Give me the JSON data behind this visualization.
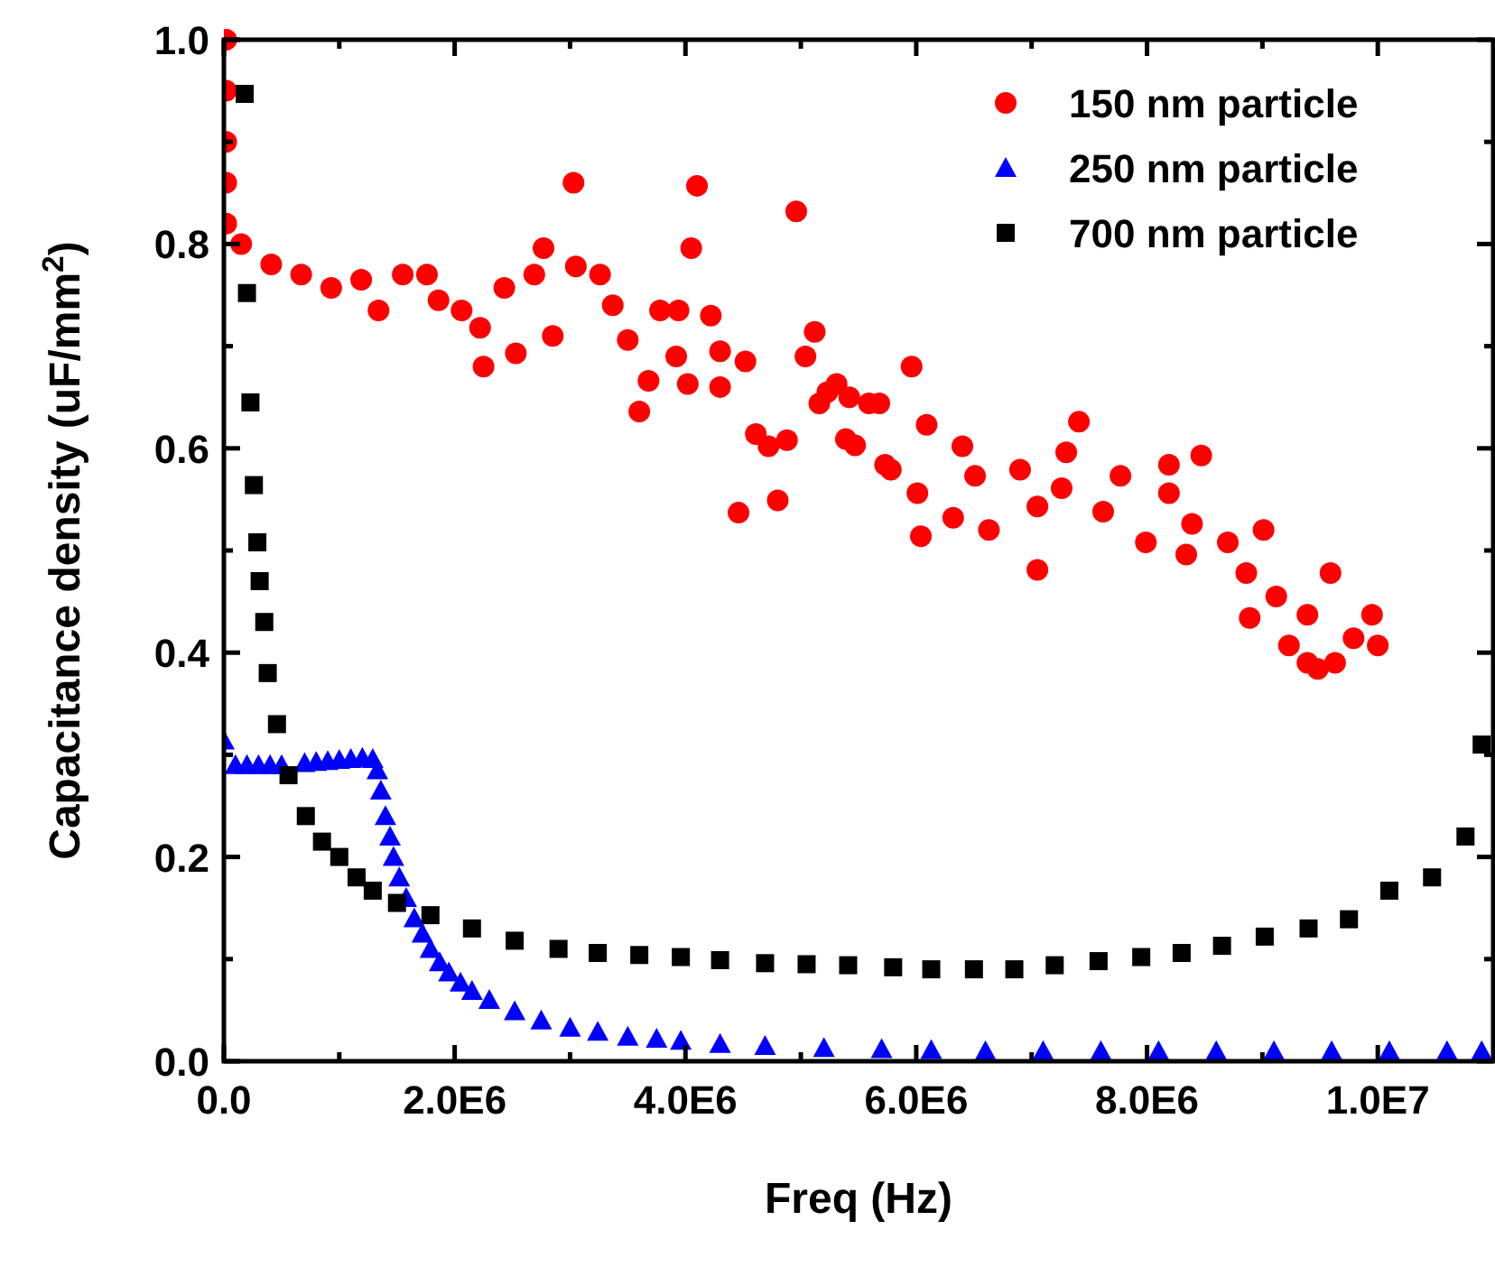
{
  "chart_data": {
    "type": "scatter",
    "xlabel": "Freq (Hz)",
    "ylabel": "Capacitance density (uF/mm$^{2}$)",
    "xlim": [
      0,
      11000000
    ],
    "ylim": [
      0,
      1.0
    ],
    "xticks": [
      {
        "value": 0,
        "label": "0.0"
      },
      {
        "value": 1000000,
        "label": null
      },
      {
        "value": 2000000,
        "label": "2.0E6"
      },
      {
        "value": 3000000,
        "label": null
      },
      {
        "value": 4000000,
        "label": "4.0E6"
      },
      {
        "value": 5000000,
        "label": null
      },
      {
        "value": 6000000,
        "label": "6.0E6"
      },
      {
        "value": 7000000,
        "label": null
      },
      {
        "value": 8000000,
        "label": "8.0E6"
      },
      {
        "value": 9000000,
        "label": null
      },
      {
        "value": 10000000,
        "label": "1.0E7"
      }
    ],
    "yticks": [
      {
        "value": 0,
        "label": "0.0"
      },
      {
        "value": 0.1,
        "label": null
      },
      {
        "value": 0.2,
        "label": "0.2"
      },
      {
        "value": 0.3,
        "label": null
      },
      {
        "value": 0.4,
        "label": "0.4"
      },
      {
        "value": 0.5,
        "label": null
      },
      {
        "value": 0.6,
        "label": "0.6"
      },
      {
        "value": 0.7,
        "label": null
      },
      {
        "value": 0.8,
        "label": "0.8"
      },
      {
        "value": 0.9,
        "label": null
      },
      {
        "value": 1.0,
        "label": "1.0"
      }
    ],
    "legend": "top right",
    "grid": false,
    "series": [
      {
        "name": "150 nm particle",
        "color": "#ff0000",
        "marker": "circle",
        "x": [
          20000,
          20000,
          20000,
          20000,
          20000,
          150000,
          410000,
          670000,
          930000,
          1190000,
          1340000,
          1550000,
          1760000,
          1860000,
          2060000,
          2220000,
          2250000,
          2430000,
          2530000,
          2690000,
          2770000,
          2850000,
          3030000,
          3050000,
          3260000,
          3370000,
          3500000,
          3600000,
          3680000,
          3780000,
          3940000,
          3920000,
          4020000,
          4050000,
          4100000,
          4220000,
          4300000,
          4300000,
          4460000,
          4520000,
          4610000,
          4720000,
          4800000,
          4880000,
          4960000,
          5040000,
          5120000,
          5160000,
          5310000,
          5420000,
          5470000,
          5680000,
          5780000,
          5960000,
          5230000,
          5590000,
          5390000,
          5730000,
          6090000,
          6010000,
          6040000,
          6400000,
          6320000,
          6510000,
          6630000,
          6900000,
          7050000,
          7050000,
          7300000,
          7410000,
          7260000,
          7620000,
          7770000,
          7990000,
          8190000,
          8190000,
          8390000,
          8470000,
          8340000,
          8700000,
          9010000,
          8860000,
          9120000,
          8890000,
          9590000,
          9390000,
          9230000,
          9480000,
          9630000,
          9950000,
          10000000,
          9790000,
          9390000
        ],
        "values": [
          1.0,
          0.95,
          0.9,
          0.86,
          0.82,
          0.8,
          0.78,
          0.77,
          0.757,
          0.765,
          0.735,
          0.77,
          0.77,
          0.745,
          0.735,
          0.718,
          0.68,
          0.757,
          0.693,
          0.77,
          0.796,
          0.71,
          0.86,
          0.778,
          0.77,
          0.74,
          0.706,
          0.636,
          0.666,
          0.735,
          0.735,
          0.69,
          0.663,
          0.796,
          0.857,
          0.73,
          0.695,
          0.66,
          0.537,
          0.685,
          0.614,
          0.602,
          0.549,
          0.608,
          0.832,
          0.69,
          0.714,
          0.644,
          0.663,
          0.65,
          0.603,
          0.644,
          0.579,
          0.68,
          0.655,
          0.644,
          0.609,
          0.584,
          0.623,
          0.556,
          0.514,
          0.602,
          0.532,
          0.573,
          0.52,
          0.579,
          0.543,
          0.481,
          0.596,
          0.626,
          0.561,
          0.538,
          0.573,
          0.508,
          0.584,
          0.556,
          0.526,
          0.593,
          0.496,
          0.508,
          0.52,
          0.478,
          0.455,
          0.434,
          0.478,
          0.437,
          0.407,
          0.384,
          0.39,
          0.437,
          0.407,
          0.414,
          0.39
        ]
      },
      {
        "name": "250 nm particle",
        "color": "#0000ff",
        "marker": "triangle",
        "x": [
          0,
          100000,
          200000,
          300000,
          400000,
          500000,
          700000,
          800000,
          900000,
          1000000,
          1100000,
          1200000,
          1290000,
          1330000,
          1360000,
          1400000,
          1440000,
          1470000,
          1520000,
          1580000,
          1650000,
          1720000,
          1790000,
          1870000,
          1950000,
          2050000,
          2150000,
          2300000,
          2520000,
          2750000,
          3000000,
          3240000,
          3500000,
          3750000,
          3960000,
          4300000,
          4690000,
          5200000,
          5700000,
          6130000,
          6600000,
          7100000,
          7600000,
          8100000,
          8600000,
          9100000,
          9600000,
          10100000,
          10600000,
          10900000
        ],
        "values": [
          0.314,
          0.29,
          0.29,
          0.29,
          0.29,
          0.29,
          0.292,
          0.293,
          0.294,
          0.295,
          0.296,
          0.297,
          0.296,
          0.285,
          0.265,
          0.24,
          0.22,
          0.2,
          0.18,
          0.16,
          0.14,
          0.125,
          0.11,
          0.097,
          0.087,
          0.077,
          0.069,
          0.06,
          0.049,
          0.04,
          0.033,
          0.029,
          0.024,
          0.022,
          0.02,
          0.017,
          0.015,
          0.013,
          0.012,
          0.011,
          0.01,
          0.01,
          0.01,
          0.01,
          0.01,
          0.01,
          0.01,
          0.01,
          0.01,
          0.01
        ]
      },
      {
        "name": "700 nm particle",
        "color": "#000000",
        "marker": "square",
        "x": [
          180000,
          200000,
          230000,
          260000,
          290000,
          310000,
          350000,
          380000,
          460000,
          560000,
          710000,
          850000,
          1000000,
          1150000,
          1290000,
          1500000,
          1790000,
          2150000,
          2520000,
          2900000,
          3240000,
          3600000,
          3960000,
          4300000,
          4690000,
          5050000,
          5410000,
          5800000,
          6130000,
          6500000,
          6850000,
          7200000,
          7580000,
          7950000,
          8300000,
          8650000,
          9020000,
          9400000,
          9750000,
          10100000,
          10470000,
          10760000,
          10900000
        ],
        "values": [
          0.947,
          0.752,
          0.645,
          0.564,
          0.508,
          0.47,
          0.43,
          0.38,
          0.33,
          0.28,
          0.24,
          0.215,
          0.2,
          0.18,
          0.167,
          0.155,
          0.143,
          0.13,
          0.118,
          0.11,
          0.106,
          0.104,
          0.102,
          0.099,
          0.096,
          0.095,
          0.094,
          0.092,
          0.09,
          0.09,
          0.09,
          0.094,
          0.098,
          0.102,
          0.106,
          0.113,
          0.122,
          0.13,
          0.139,
          0.167,
          0.18,
          0.22,
          0.31
        ]
      }
    ]
  }
}
